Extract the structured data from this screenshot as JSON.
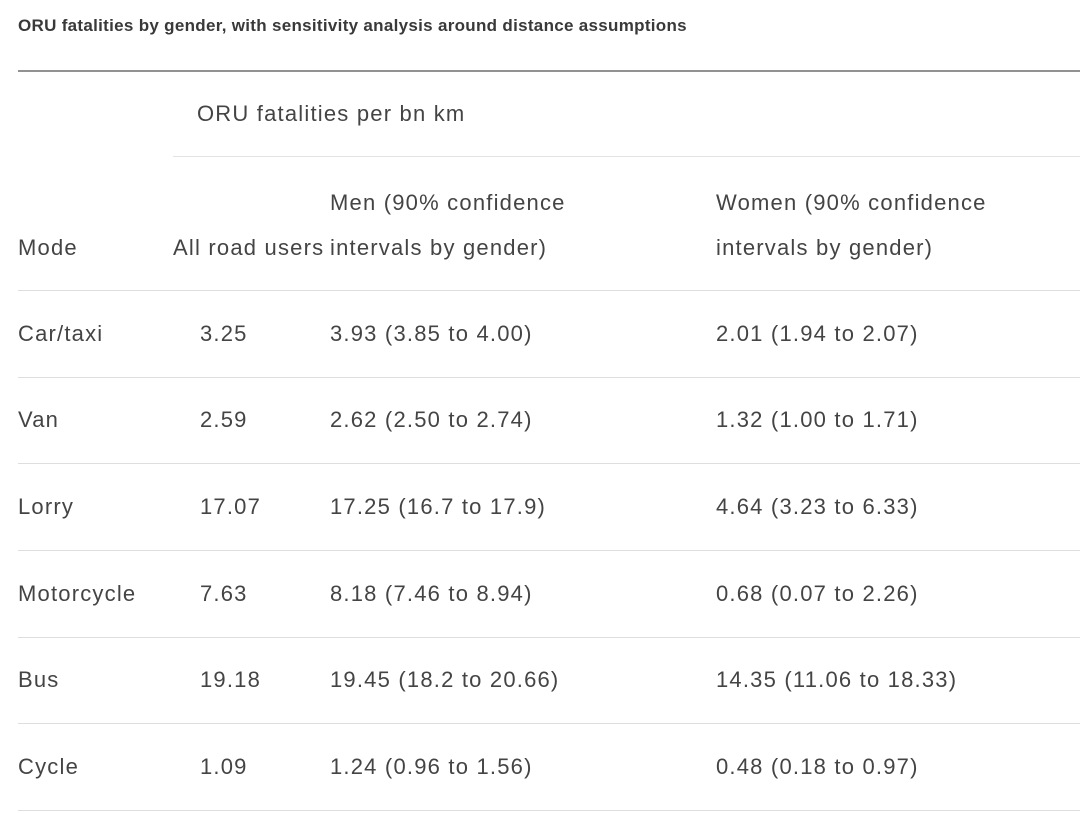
{
  "title": "ORU fatalities by gender, with sensitivity analysis around distance assumptions",
  "chart_data": {
    "type": "table",
    "title": "ORU fatalities by gender, with sensitivity analysis around distance assumptions",
    "group_header": "ORU fatalities per bn km",
    "columns": [
      "Mode",
      "All road users",
      "Men (90% confidence intervals by gender)",
      "Women (90% confidence intervals by gender)"
    ],
    "rows": [
      [
        "Car/taxi",
        "3.25",
        "3.93 (3.85 to 4.00)",
        "2.01 (1.94 to 2.07)"
      ],
      [
        "Van",
        "2.59",
        "2.62 (2.50 to 2.74)",
        "1.32 (1.00 to 1.71)"
      ],
      [
        "Lorry",
        "17.07",
        "17.25 (16.7 to 17.9)",
        "4.64 (3.23 to 6.33)"
      ],
      [
        "Motorcycle",
        "7.63",
        "8.18 (7.46 to 8.94)",
        "0.68 (0.07 to 2.26)"
      ],
      [
        "Bus",
        "19.18",
        "19.45 (18.2 to 20.66)",
        "14.35 (11.06 to 18.33)"
      ],
      [
        "Cycle",
        "1.09",
        "1.24 (0.96 to 1.56)",
        "0.48 (0.18 to 0.97)"
      ]
    ],
    "values_numeric": [
      {
        "mode": "Car/taxi",
        "all_road_users": 3.25,
        "men": 3.93,
        "men_ci": [
          3.85,
          4.0
        ],
        "women": 2.01,
        "women_ci": [
          1.94,
          2.07
        ]
      },
      {
        "mode": "Van",
        "all_road_users": 2.59,
        "men": 2.62,
        "men_ci": [
          2.5,
          2.74
        ],
        "women": 1.32,
        "women_ci": [
          1.0,
          1.71
        ]
      },
      {
        "mode": "Lorry",
        "all_road_users": 17.07,
        "men": 17.25,
        "men_ci": [
          16.7,
          17.9
        ],
        "women": 4.64,
        "women_ci": [
          3.23,
          6.33
        ]
      },
      {
        "mode": "Motorcycle",
        "all_road_users": 7.63,
        "men": 8.18,
        "men_ci": [
          7.46,
          8.94
        ],
        "women": 0.68,
        "women_ci": [
          0.07,
          2.26
        ]
      },
      {
        "mode": "Bus",
        "all_road_users": 19.18,
        "men": 19.45,
        "men_ci": [
          18.2,
          20.66
        ],
        "women": 14.35,
        "women_ci": [
          11.06,
          18.33
        ]
      },
      {
        "mode": "Cycle",
        "all_road_users": 1.09,
        "men": 1.24,
        "men_ci": [
          0.96,
          1.56
        ],
        "women": 0.48,
        "women_ci": [
          0.18,
          0.97
        ]
      }
    ]
  },
  "colors": {
    "background": "#ffffff",
    "title_text": "#393939",
    "text": "#444444",
    "rule_dark": "#929292",
    "rule_light": "#dedede",
    "rule_group": "#e3e3e3"
  }
}
